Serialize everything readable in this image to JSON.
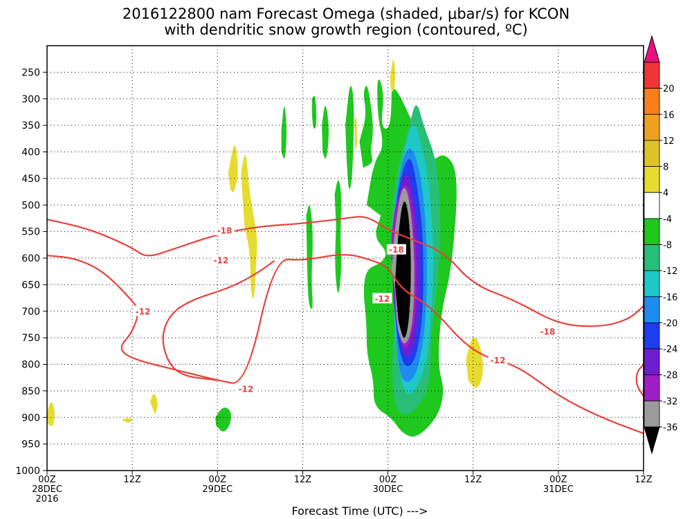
{
  "chart_data": {
    "type": "heatmap",
    "title_lines": [
      "2016122800 nam Forecast Omega (shaded, μbar/s) for KCON",
      "with dendritic snow growth region (contoured, ºC)"
    ],
    "xlabel": "Forecast Time (UTC) --->",
    "x_ticks": [
      {
        "hour": 0,
        "label": [
          "00Z",
          "28DEC",
          "2016"
        ]
      },
      {
        "hour": 12,
        "label": [
          "12Z"
        ]
      },
      {
        "hour": 24,
        "label": [
          "00Z",
          "29DEC"
        ]
      },
      {
        "hour": 36,
        "label": [
          "12Z"
        ]
      },
      {
        "hour": 48,
        "label": [
          "00Z",
          "30DEC"
        ]
      },
      {
        "hour": 60,
        "label": [
          "12Z"
        ]
      },
      {
        "hour": 72,
        "label": [
          "00Z",
          "31DEC"
        ]
      },
      {
        "hour": 84,
        "label": [
          "12Z"
        ]
      }
    ],
    "xlim": [
      0,
      84
    ],
    "y_ticks": [
      250,
      300,
      350,
      400,
      450,
      500,
      550,
      600,
      650,
      700,
      750,
      800,
      850,
      900,
      950,
      1000
    ],
    "ylim": [
      1000,
      200
    ],
    "grid": true,
    "colorbar": {
      "labels": [
        "20",
        "16",
        "12",
        "8",
        "4",
        "-4",
        "-8",
        "-12",
        "-16",
        "-20",
        "-24",
        "-28",
        "-32",
        "-36"
      ],
      "colors": [
        "#e8127f",
        "#f03535",
        "#f77f1c",
        "#f0a020",
        "#dcc428",
        "#e6dc30",
        "#ffffff",
        "#1ec81e",
        "#28be78",
        "#1ec8c8",
        "#1e8cf0",
        "#1e3cf0",
        "#6e1ed2",
        "#a01ec8",
        "#9b9b9b",
        "#000000"
      ]
    },
    "contours": [
      {
        "label": "-18",
        "color": "#e8403a",
        "points": [
          [
            0,
            527
          ],
          [
            6,
            545
          ],
          [
            12,
            580
          ],
          [
            14,
            600
          ],
          [
            18,
            582
          ],
          [
            24,
            555
          ],
          [
            30,
            540
          ],
          [
            36,
            535
          ],
          [
            42,
            525
          ],
          [
            45,
            520
          ],
          [
            48,
            547
          ],
          [
            52,
            568
          ],
          [
            56,
            590
          ],
          [
            60,
            650
          ],
          [
            66,
            680
          ],
          [
            72,
            725
          ],
          [
            78,
            730
          ],
          [
            82,
            715
          ],
          [
            84,
            690
          ]
        ]
      },
      {
        "label": "-12",
        "color": "#e8403a",
        "points": [
          [
            0,
            595
          ],
          [
            4,
            600
          ],
          [
            8,
            625
          ],
          [
            12,
            680
          ],
          [
            13,
            700
          ],
          [
            12,
            740
          ],
          [
            10,
            770
          ],
          [
            12,
            790
          ],
          [
            18,
            810
          ],
          [
            24,
            830
          ],
          [
            28,
            840
          ],
          [
            32,
            600
          ],
          [
            36,
            605
          ],
          [
            42,
            590
          ],
          [
            46,
            605
          ],
          [
            48,
            617
          ],
          [
            50,
            660
          ],
          [
            54,
            690
          ],
          [
            60,
            780
          ],
          [
            66,
            800
          ],
          [
            72,
            860
          ],
          [
            78,
            900
          ],
          [
            84,
            930
          ]
        ]
      },
      {
        "label": "-12",
        "color": "#e8403a",
        "points": [
          [
            84,
            800
          ],
          [
            83,
            815
          ],
          [
            83,
            840
          ],
          [
            84,
            860
          ]
        ]
      },
      {
        "label": "-12",
        "color": "#e8403a",
        "points": [
          [
            24,
            830
          ],
          [
            18,
            820
          ],
          [
            16,
            760
          ],
          [
            17,
            710
          ],
          [
            20,
            680
          ],
          [
            26,
            655
          ],
          [
            30,
            625
          ],
          [
            32,
            605
          ]
        ]
      }
    ],
    "contour_labels": [
      {
        "text": "-18",
        "hour": 25,
        "pres": 548
      },
      {
        "text": "-12",
        "hour": 24.5,
        "pres": 604
      },
      {
        "text": "-12",
        "hour": 13.5,
        "pres": 700
      },
      {
        "text": "-12",
        "hour": 28,
        "pres": 846
      },
      {
        "text": "-18",
        "hour": 49.2,
        "pres": 584
      },
      {
        "text": "-12",
        "hour": 47.2,
        "pres": 676
      },
      {
        "text": "-18",
        "hour": 70.5,
        "pres": 738
      },
      {
        "text": "-12",
        "hour": 63.5,
        "pres": 792
      }
    ],
    "features": [
      {
        "color": "#1ec81e",
        "points": [
          [
            44,
            380
          ],
          [
            45,
            330
          ],
          [
            44.5,
            290
          ],
          [
            45,
            270
          ],
          [
            45.5,
            300
          ],
          [
            46,
            360
          ],
          [
            45.5,
            400
          ],
          [
            46,
            420
          ],
          [
            44.5,
            430
          ]
        ]
      },
      {
        "color": "#1ec81e",
        "points": [
          [
            45,
            500
          ],
          [
            46,
            420
          ],
          [
            47.5,
            390
          ],
          [
            46.5,
            330
          ],
          [
            46.5,
            250
          ],
          [
            47.5,
            290
          ],
          [
            47,
            350
          ],
          [
            48,
            360
          ],
          [
            48.5,
            330
          ],
          [
            48.5,
            260
          ],
          [
            52,
            360
          ],
          [
            54,
            420
          ],
          [
            56,
            400
          ],
          [
            58,
            440
          ],
          [
            57,
            620
          ],
          [
            55.5,
            700
          ],
          [
            55,
            800
          ],
          [
            56,
            850
          ],
          [
            55,
            900
          ],
          [
            52,
            940
          ],
          [
            50,
            930
          ],
          [
            48.5,
            900
          ],
          [
            46,
            880
          ],
          [
            46,
            830
          ],
          [
            45,
            780
          ],
          [
            45,
            720
          ],
          [
            44.5,
            660
          ],
          [
            45,
            620
          ],
          [
            47,
            610
          ],
          [
            48,
            590
          ],
          [
            46,
            560
          ],
          [
            47,
            520
          ]
        ]
      },
      {
        "color": "#28be78",
        "points": [
          [
            48.5,
            540
          ],
          [
            49,
            450
          ],
          [
            51,
            350
          ],
          [
            52,
            300
          ],
          [
            53,
            350
          ],
          [
            55,
            420
          ],
          [
            55.5,
            550
          ],
          [
            55,
            650
          ],
          [
            54,
            760
          ],
          [
            54,
            820
          ],
          [
            53,
            870
          ],
          [
            50.5,
            900
          ],
          [
            49,
            880
          ],
          [
            48.5,
            820
          ],
          [
            49,
            700
          ]
        ]
      },
      {
        "color": "#1ec8c8",
        "points": [
          [
            48.5,
            560
          ],
          [
            50,
            420
          ],
          [
            51.5,
            330
          ],
          [
            53,
            400
          ],
          [
            54,
            480
          ],
          [
            54.5,
            620
          ],
          [
            54,
            720
          ],
          [
            53.5,
            800
          ],
          [
            51.5,
            860
          ],
          [
            50,
            850
          ],
          [
            49,
            740
          ]
        ]
      },
      {
        "color": "#1e8cf0",
        "points": [
          [
            48.5,
            570
          ],
          [
            49.5,
            440
          ],
          [
            51,
            380
          ],
          [
            52.5,
            430
          ],
          [
            53.5,
            550
          ],
          [
            53.5,
            700
          ],
          [
            52.5,
            800
          ],
          [
            51,
            840
          ],
          [
            49.5,
            820
          ],
          [
            49,
            700
          ]
        ]
      },
      {
        "color": "#1e3cf0",
        "points": [
          [
            48.5,
            580
          ],
          [
            49.5,
            460
          ],
          [
            51,
            400
          ],
          [
            52,
            450
          ],
          [
            53,
            560
          ],
          [
            53,
            700
          ],
          [
            52,
            790
          ],
          [
            50.5,
            810
          ],
          [
            49.5,
            770
          ],
          [
            48.8,
            680
          ]
        ]
      },
      {
        "color": "#6e1ed2",
        "points": [
          [
            48.5,
            600
          ],
          [
            49.5,
            480
          ],
          [
            50.5,
            430
          ],
          [
            51.5,
            470
          ],
          [
            52.5,
            580
          ],
          [
            52.5,
            700
          ],
          [
            51.5,
            780
          ],
          [
            50.3,
            790
          ],
          [
            49.5,
            740
          ],
          [
            48.8,
            670
          ]
        ]
      },
      {
        "color": "#a01ec8",
        "points": [
          [
            48.5,
            560
          ],
          [
            49,
            500
          ],
          [
            50.5,
            450
          ],
          [
            51.5,
            500
          ],
          [
            52,
            600
          ],
          [
            52,
            700
          ],
          [
            51,
            770
          ],
          [
            49.8,
            765
          ],
          [
            49,
            700
          ]
        ]
      },
      {
        "color": "#9b9b9b",
        "points": [
          [
            48.5,
            620
          ],
          [
            49,
            540
          ],
          [
            50,
            460
          ],
          [
            51,
            480
          ],
          [
            51.8,
            600
          ],
          [
            51.6,
            720
          ],
          [
            50.5,
            770
          ],
          [
            49.3,
            740
          ],
          [
            49,
            660
          ]
        ]
      },
      {
        "color": "#000000",
        "points": [
          [
            49,
            650
          ],
          [
            49.4,
            560
          ],
          [
            50.2,
            480
          ],
          [
            51,
            520
          ],
          [
            51.3,
            620
          ],
          [
            51,
            720
          ],
          [
            50.3,
            760
          ],
          [
            49.5,
            720
          ]
        ]
      },
      {
        "color": "#1ec81e",
        "points": [
          [
            40.5,
            480
          ],
          [
            41,
            445
          ],
          [
            41.5,
            480
          ],
          [
            41.3,
            560
          ],
          [
            41.5,
            620
          ],
          [
            41,
            680
          ],
          [
            40.5,
            620
          ],
          [
            40.7,
            540
          ]
        ]
      },
      {
        "color": "#1ec81e",
        "points": [
          [
            36.5,
            520
          ],
          [
            37,
            490
          ],
          [
            37.5,
            560
          ],
          [
            37.2,
            640
          ],
          [
            37.5,
            700
          ],
          [
            36.8,
            690
          ],
          [
            36.6,
            600
          ]
        ]
      },
      {
        "color": "#1ec81e",
        "points": [
          [
            33,
            360
          ],
          [
            33.4,
            300
          ],
          [
            33.8,
            360
          ],
          [
            33.5,
            420
          ],
          [
            33,
            400
          ]
        ]
      },
      {
        "color": "#1ec81e",
        "points": [
          [
            37.3,
            300
          ],
          [
            37.8,
            290
          ],
          [
            38,
            350
          ],
          [
            37.5,
            360
          ],
          [
            37.3,
            330
          ]
        ]
      },
      {
        "color": "#1ec81e",
        "points": [
          [
            38.7,
            350
          ],
          [
            39.2,
            300
          ],
          [
            39.8,
            360
          ],
          [
            39.3,
            420
          ],
          [
            38.8,
            400
          ]
        ]
      },
      {
        "color": "#1ec81e",
        "points": [
          [
            42,
            350
          ],
          [
            42.7,
            260
          ],
          [
            43.3,
            310
          ],
          [
            43,
            450
          ],
          [
            42.5,
            480
          ],
          [
            42.2,
            420
          ]
        ]
      },
      {
        "color": "#1ec81e",
        "points": [
          [
            23.7,
            900
          ],
          [
            24.8,
            878
          ],
          [
            26,
            888
          ],
          [
            25.8,
            915
          ],
          [
            24.8,
            930
          ],
          [
            23.8,
            915
          ]
        ]
      },
      {
        "color": "#e6dc30",
        "points": [
          [
            48.3,
            260
          ],
          [
            48.8,
            215
          ],
          [
            49.1,
            260
          ],
          [
            48.8,
            290
          ],
          [
            48.4,
            280
          ]
        ]
      },
      {
        "color": "#e6dc30",
        "points": [
          [
            43.3,
            340
          ],
          [
            43.6,
            330
          ],
          [
            43.7,
            390
          ],
          [
            43.4,
            395
          ]
        ]
      },
      {
        "color": "#e6dc30",
        "points": [
          [
            25.5,
            440
          ],
          [
            26.5,
            370
          ],
          [
            27,
            440
          ],
          [
            26.3,
            480
          ],
          [
            25.8,
            470
          ]
        ]
      },
      {
        "color": "#e6dc30",
        "points": [
          [
            27.3,
            440
          ],
          [
            28,
            390
          ],
          [
            28.5,
            480
          ],
          [
            29.7,
            560
          ],
          [
            29.4,
            620
          ],
          [
            29.2,
            680
          ],
          [
            28.7,
            670
          ],
          [
            28.6,
            590
          ],
          [
            27.8,
            540
          ]
        ]
      },
      {
        "color": "#e6dc30",
        "points": [
          [
            59,
            790
          ],
          [
            60,
            740
          ],
          [
            61.2,
            770
          ],
          [
            61.5,
            820
          ],
          [
            60.5,
            850
          ],
          [
            59.3,
            830
          ]
        ]
      },
      {
        "color": "#e6dc30",
        "points": [
          [
            0,
            890
          ],
          [
            0.6,
            865
          ],
          [
            1.2,
            890
          ],
          [
            0.8,
            920
          ],
          [
            0,
            910
          ]
        ]
      },
      {
        "color": "#e6dc30",
        "points": [
          [
            14.5,
            870
          ],
          [
            15.1,
            850
          ],
          [
            15.7,
            875
          ],
          [
            15.2,
            895
          ]
        ]
      },
      {
        "color": "#e6dc30",
        "points": [
          [
            10.5,
            905
          ],
          [
            11.4,
            900
          ],
          [
            12.2,
            905
          ],
          [
            11.4,
            910
          ]
        ]
      }
    ]
  }
}
